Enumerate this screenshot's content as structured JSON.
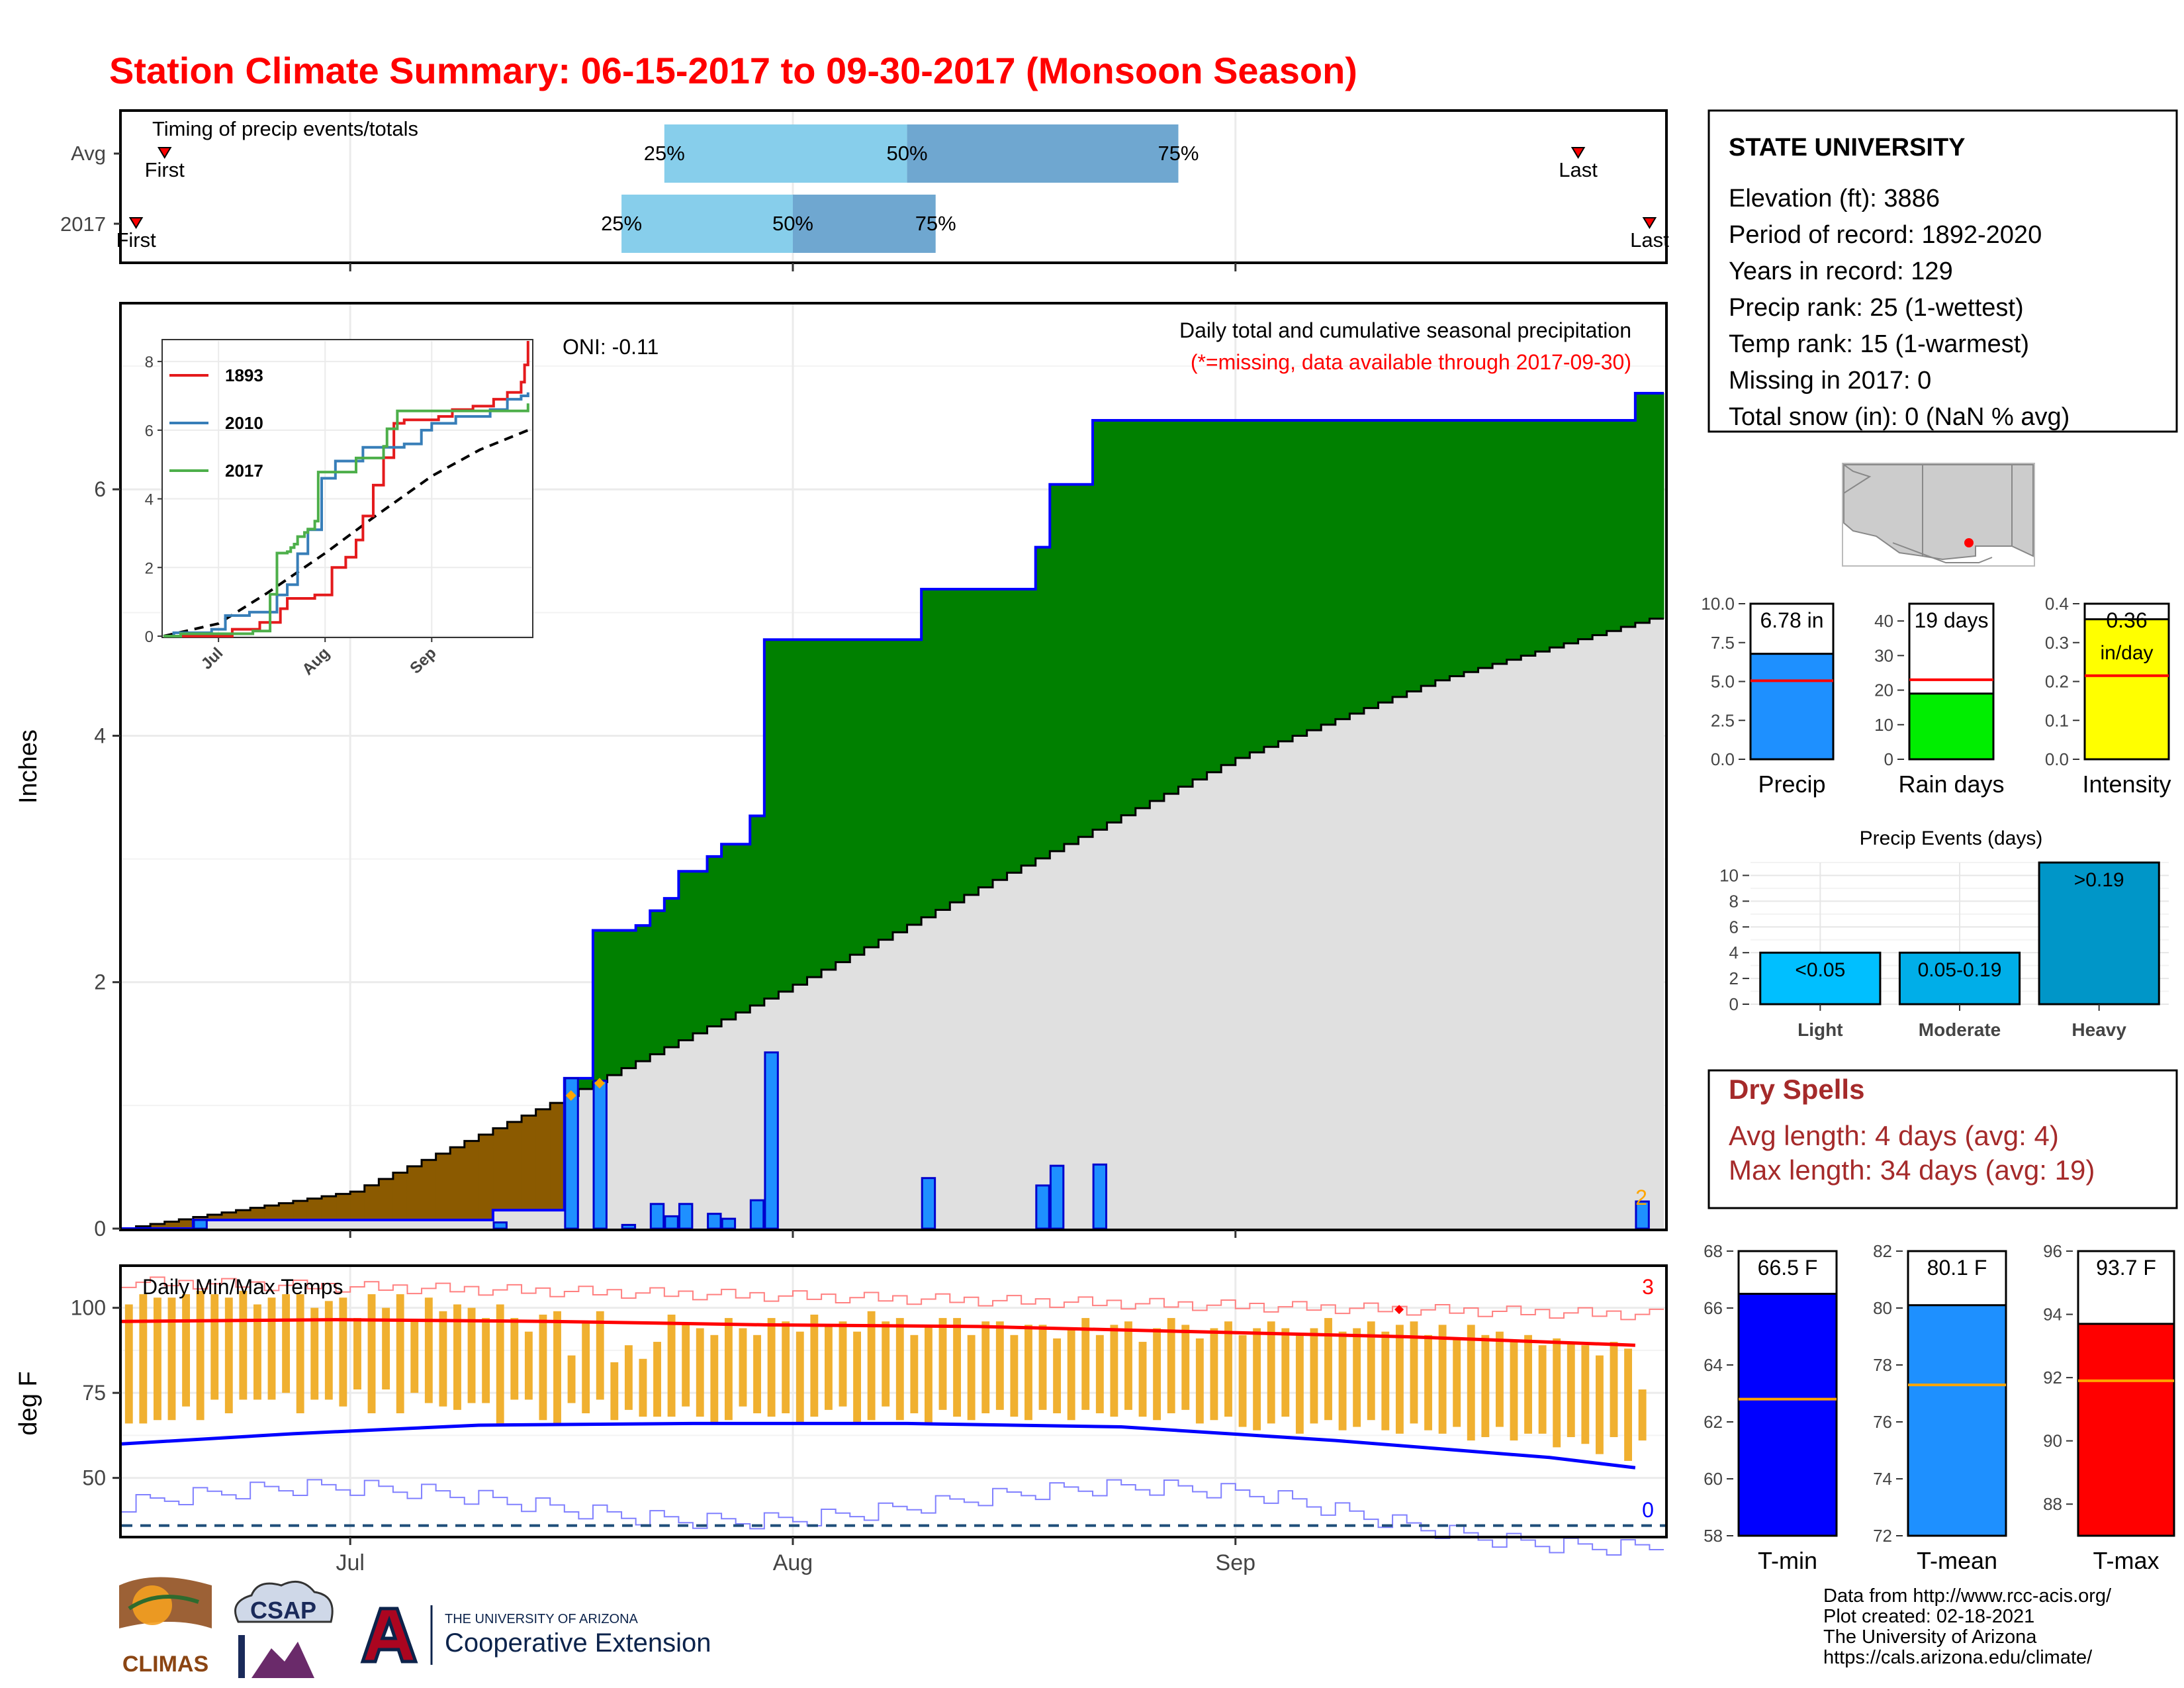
{
  "title": "Station Climate Summary: 06-15-2017 to 09-30-2017 (Monsoon Season)",
  "timing": {
    "title": "Timing of precip events/totals",
    "rows": [
      {
        "label": "Avg",
        "first_label": "First",
        "last_label": "Last",
        "p25": "25%",
        "p50": "50%",
        "p75": "75%"
      },
      {
        "label": "2017",
        "first_label": "First",
        "last_label": "Last",
        "p25": "25%",
        "p50": "50%",
        "p75": "75%"
      }
    ]
  },
  "station": {
    "name": "STATE UNIVERSITY",
    "lines": [
      "Elevation (ft): 3886",
      "Period of record: 1892-2020",
      "Years in record: 129",
      "Precip rank: 25 (1-wettest)",
      "Temp rank: 15 (1-warmest)",
      "Missing in 2017: 0",
      "Total snow (in): 0 (NaN % avg)"
    ]
  },
  "precip_panel": {
    "ylabel": "Inches",
    "title": "Daily total and cumulative seasonal precipitation",
    "subtitle": "(*=missing, data available through 2017-09-30)",
    "oni": "ONI: -0.11",
    "end_label": "2",
    "yticks": [
      "0",
      "2",
      "4",
      "6"
    ]
  },
  "inset": {
    "yticks": [
      "0",
      "2",
      "4",
      "6",
      "8"
    ],
    "xticks": [
      "Jul",
      "Aug",
      "Sep"
    ],
    "legend": [
      {
        "name": "1893",
        "color": "#e41a1c"
      },
      {
        "name": "2010",
        "color": "#377eb8"
      },
      {
        "name": "2017",
        "color": "#4daf4a"
      }
    ]
  },
  "temp_panel": {
    "title": "Daily Min/Max Temps",
    "ylabel": "deg F",
    "yticks": [
      "50",
      "75",
      "100"
    ],
    "xticks": [
      "Jul",
      "Aug",
      "Sep"
    ],
    "count_high": "3",
    "count_low": "0"
  },
  "small_bars": [
    {
      "label": "Precip",
      "value_text": "6.78 in",
      "yticks": [
        "0.0",
        "2.5",
        "5.0",
        "7.5",
        "10.0"
      ],
      "color": "#1e90ff"
    },
    {
      "label": "Rain days",
      "value_text": "19 days",
      "yticks": [
        "0",
        "10",
        "20",
        "30",
        "40"
      ],
      "color": "#00ee00"
    },
    {
      "label": "Intensity",
      "value_text": "0.36",
      "value_unit": "in/day",
      "yticks": [
        "0.0",
        "0.1",
        "0.2",
        "0.3",
        "0.4"
      ],
      "color": "#ffff00"
    }
  ],
  "events": {
    "title": "Precip Events (days)",
    "yticks": [
      "0",
      "2",
      "4",
      "6",
      "8",
      "10"
    ],
    "bars": [
      {
        "category": "Light",
        "label": "<0.05"
      },
      {
        "category": "Moderate",
        "label": "0.05-0.19"
      },
      {
        "category": "Heavy",
        "label": ">0.19"
      }
    ]
  },
  "dry_spells": {
    "title": "Dry Spells",
    "lines": [
      "Avg length: 4 days (avg: 4)",
      "Max length: 34 days (avg: 19)"
    ]
  },
  "temp_bars": [
    {
      "label": "T-min",
      "value_text": "66.5 F",
      "yticks": [
        "58",
        "60",
        "62",
        "64",
        "66",
        "68"
      ],
      "color": "#0000ff"
    },
    {
      "label": "T-mean",
      "value_text": "80.1 F",
      "yticks": [
        "72",
        "74",
        "76",
        "78",
        "80",
        "82"
      ],
      "color": "#1e90ff"
    },
    {
      "label": "T-max",
      "value_text": "93.7 F",
      "yticks": [
        "88",
        "90",
        "92",
        "94",
        "96"
      ],
      "color": "#ff0000"
    }
  ],
  "footer": {
    "lines": [
      "Data from http://www.rcc-acis.org/",
      "Plot created: 02-18-2021",
      "The University of Arizona",
      "https://cals.arizona.edu/climate/"
    ],
    "logos": {
      "climas": "CLIMAS",
      "csap": "CSAP",
      "ua_small": "THE UNIVERSITY OF ARIZONA",
      "ua_big": "Cooperative Extension"
    }
  },
  "chart_data": [
    {
      "type": "bar",
      "name": "timing",
      "rows": [
        {
          "row": "Avg",
          "first": "2017-06-18",
          "p25": "2017-07-23",
          "p50": "2017-08-09",
          "p75": "2017-08-28",
          "last": "2017-09-25"
        },
        {
          "row": "2017",
          "first": "2017-06-16",
          "p25": "2017-07-20",
          "p50": "2017-08-01",
          "p75": "2017-08-11",
          "last": "2017-09-30"
        }
      ]
    },
    {
      "type": "area",
      "name": "precip",
      "ylim": [
        0,
        7.5
      ],
      "cumulative_2017": [
        [
          "2017-06-15",
          0.0
        ],
        [
          "2017-06-20",
          0.07
        ],
        [
          "2017-07-11",
          0.15
        ],
        [
          "2017-07-16",
          1.22
        ],
        [
          "2017-07-18",
          2.42
        ],
        [
          "2017-07-21",
          2.46
        ],
        [
          "2017-07-22",
          2.58
        ],
        [
          "2017-07-23",
          2.68
        ],
        [
          "2017-07-24",
          2.9
        ],
        [
          "2017-07-26",
          3.02
        ],
        [
          "2017-07-27",
          3.12
        ],
        [
          "2017-07-29",
          3.35
        ],
        [
          "2017-07-30",
          4.78
        ],
        [
          "2017-08-10",
          5.19
        ],
        [
          "2017-08-18",
          5.53
        ],
        [
          "2017-08-19",
          6.04
        ],
        [
          "2017-08-22",
          6.56
        ],
        [
          "2017-09-29",
          6.78
        ]
      ],
      "normal_cumulative": [
        [
          "2017-06-15",
          0.0
        ],
        [
          "2017-07-01",
          0.3
        ],
        [
          "2017-07-15",
          1.02
        ],
        [
          "2017-08-01",
          1.98
        ],
        [
          "2017-08-15",
          2.83
        ],
        [
          "2017-09-01",
          3.82
        ],
        [
          "2017-09-15",
          4.45
        ],
        [
          "2017-09-30",
          4.95
        ]
      ],
      "daily_bars": [
        [
          "2017-06-20",
          0.07
        ],
        [
          "2017-07-11",
          0.05
        ],
        [
          "2017-07-16",
          1.22
        ],
        [
          "2017-07-18",
          1.2
        ],
        [
          "2017-07-20",
          0.03
        ],
        [
          "2017-07-22",
          0.2
        ],
        [
          "2017-07-23",
          0.1
        ],
        [
          "2017-07-24",
          0.2
        ],
        [
          "2017-07-26",
          0.12
        ],
        [
          "2017-07-27",
          0.08
        ],
        [
          "2017-07-29",
          0.23
        ],
        [
          "2017-07-30",
          1.43
        ],
        [
          "2017-08-10",
          0.41
        ],
        [
          "2017-08-18",
          0.35
        ],
        [
          "2017-08-19",
          0.51
        ],
        [
          "2017-08-22",
          0.52
        ],
        [
          "2017-09-29",
          0.22
        ]
      ]
    },
    {
      "type": "line",
      "name": "temps",
      "ylim": [
        33,
        112
      ],
      "daily_range_start": "2017-06-15",
      "tmax": [
        101,
        104,
        103,
        103,
        104,
        105,
        104,
        103,
        105,
        101,
        103,
        104,
        104,
        100,
        102,
        103,
        97,
        104,
        100,
        104,
        96,
        103,
        99,
        101,
        100,
        97,
        101,
        97,
        93,
        98,
        99,
        86,
        96,
        99,
        84,
        89,
        85,
        90,
        98,
        95,
        94,
        92,
        97,
        94,
        92,
        97,
        96,
        93,
        98,
        95,
        96,
        93,
        99,
        96,
        97,
        92,
        95,
        97,
        97,
        92,
        96,
        96,
        92,
        95,
        95,
        91,
        94,
        97,
        92,
        95,
        96,
        90,
        94,
        97,
        95,
        91,
        94,
        96,
        92,
        94,
        96,
        94,
        92,
        94,
        97,
        93,
        94,
        96,
        93,
        95,
        96,
        92,
        95,
        91,
        95,
        92,
        93,
        90,
        92,
        89,
        91,
        90,
        89,
        86,
        90,
        88,
        76
      ],
      "tmin": [
        66,
        66,
        67,
        67,
        71,
        67,
        73,
        69,
        73,
        73,
        73,
        75,
        69,
        73,
        73,
        71,
        76,
        69,
        76,
        69,
        75,
        72,
        71,
        70,
        72,
        72,
        66,
        73,
        73,
        67,
        66,
        72,
        69,
        73,
        67,
        70,
        68,
        68,
        68,
        71,
        68,
        66,
        67,
        71,
        69,
        68,
        69,
        66,
        68,
        70,
        71,
        66,
        67,
        71,
        67,
        69,
        66,
        70,
        68,
        67,
        69,
        70,
        68,
        67,
        70,
        69,
        67,
        70,
        69,
        68,
        70,
        68,
        67,
        69,
        70,
        66,
        67,
        68,
        65,
        64,
        66,
        68,
        63,
        66,
        67,
        64,
        65,
        67,
        64,
        63,
        66,
        64,
        63,
        65,
        61,
        62,
        65,
        61,
        63,
        63,
        59,
        62,
        60,
        57,
        62,
        55,
        61
      ],
      "normal_max": [
        [
          0,
          96
        ],
        [
          15,
          96.5
        ],
        [
          30,
          96
        ],
        [
          45,
          95
        ],
        [
          60,
          94.5
        ],
        [
          75,
          93
        ],
        [
          90,
          91.5
        ],
        [
          106,
          89
        ]
      ],
      "normal_min": [
        [
          0,
          60
        ],
        [
          12,
          63
        ],
        [
          25,
          65.5
        ],
        [
          40,
          66
        ],
        [
          55,
          66
        ],
        [
          70,
          65
        ],
        [
          85,
          61
        ],
        [
          100,
          56
        ],
        [
          106,
          53
        ]
      ],
      "record_high_count": 3,
      "record_low_count": 0
    },
    {
      "type": "bar",
      "name": "season_precip",
      "categories": [
        "Precip"
      ],
      "values": [
        6.78
      ],
      "normal": 5.05,
      "ylim": [
        0,
        10
      ]
    },
    {
      "type": "bar",
      "name": "rain_days",
      "categories": [
        "Rain days"
      ],
      "values": [
        19
      ],
      "normal": 23,
      "ylim": [
        0,
        45
      ]
    },
    {
      "type": "bar",
      "name": "intensity",
      "categories": [
        "Intensity"
      ],
      "values": [
        0.36
      ],
      "normal": 0.215,
      "ylim": [
        0,
        0.4
      ]
    },
    {
      "type": "bar",
      "name": "events",
      "categories": [
        "Light",
        "Moderate",
        "Heavy"
      ],
      "values": [
        4,
        4,
        11
      ],
      "ylim": [
        0,
        11
      ]
    },
    {
      "type": "bar",
      "name": "tmin_bar",
      "categories": [
        "T-min"
      ],
      "values": [
        66.5
      ],
      "normal": 62.8,
      "ylim": [
        58,
        68
      ]
    },
    {
      "type": "bar",
      "name": "tmean_bar",
      "categories": [
        "T-mean"
      ],
      "values": [
        80.1
      ],
      "normal": 77.3,
      "ylim": [
        72,
        82
      ]
    },
    {
      "type": "bar",
      "name": "tmax_bar",
      "categories": [
        "T-max"
      ],
      "values": [
        93.7
      ],
      "normal": 91.9,
      "ylim": [
        87,
        96
      ]
    }
  ]
}
